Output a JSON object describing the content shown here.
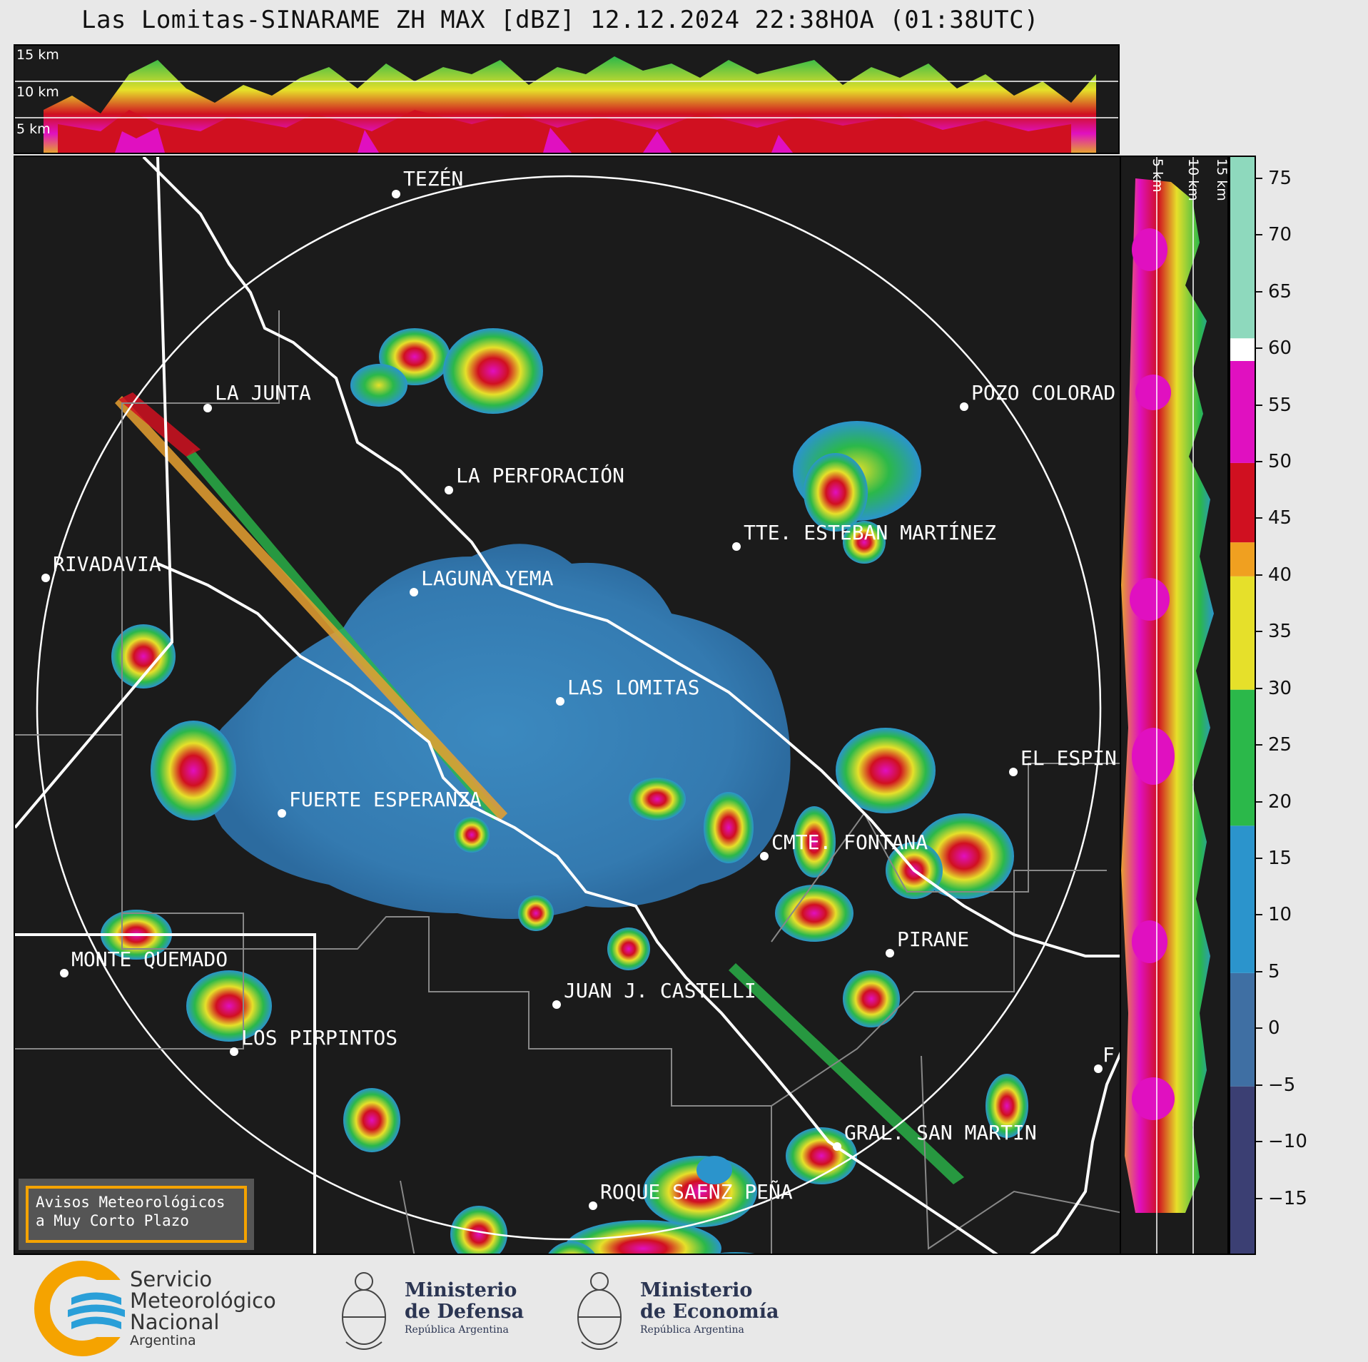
{
  "title": "Las Lomitas-SINARAME ZH MAX [dBZ] 12.12.2024 22:38HOA (01:38UTC)",
  "profile_height_labels": [
    "15 km",
    "10 km",
    "5 km"
  ],
  "colorbar": {
    "ticks": [
      "75",
      "70",
      "65",
      "60",
      "55",
      "50",
      "45",
      "40",
      "35",
      "30",
      "25",
      "20",
      "15",
      "10",
      "5",
      "0",
      "−5",
      "−10",
      "−15"
    ],
    "bands": [
      {
        "from": -20,
        "to": -5,
        "color": "#3b3f73"
      },
      {
        "from": -5,
        "to": 5,
        "color": "#3f6fa3"
      },
      {
        "from": 5,
        "to": 18,
        "color": "#2b94cc"
      },
      {
        "from": 18,
        "to": 30,
        "color": "#2bb84a"
      },
      {
        "from": 30,
        "to": 40,
        "color": "#e6e02a"
      },
      {
        "from": 40,
        "to": 43,
        "color": "#f0a020"
      },
      {
        "from": 43,
        "to": 50,
        "color": "#d01020"
      },
      {
        "from": 50,
        "to": 59,
        "color": "#e010c0"
      },
      {
        "from": 59,
        "to": 61,
        "color": "#ffffff"
      },
      {
        "from": 61,
        "to": 77,
        "color": "#8ed9bd"
      }
    ]
  },
  "cities": [
    {
      "name": "TEZÉN"
    },
    {
      "name": "LA JUNTA"
    },
    {
      "name": "POZO COLORAD"
    },
    {
      "name": "LA PERFORACIÓN"
    },
    {
      "name": "TTE. ESTEBAN MARTÍNEZ"
    },
    {
      "name": "RIVADAVIA"
    },
    {
      "name": "LAGUNA YEMA"
    },
    {
      "name": "LAS LOMITAS"
    },
    {
      "name": "EL ESPIN"
    },
    {
      "name": "FUERTE ESPERANZA"
    },
    {
      "name": "CMTE. FONTANA"
    },
    {
      "name": "PIRANE"
    },
    {
      "name": "MONTE QUEMADO"
    },
    {
      "name": "JUAN J. CASTELLI"
    },
    {
      "name": "LOS PIRPINTOS"
    },
    {
      "name": "GRAL. SAN MARTIN"
    },
    {
      "name": "ROQUE SAENZ PEÑA"
    },
    {
      "name": "F"
    }
  ],
  "alert_box": {
    "line1": "Avisos Meteorológicos",
    "line2": "a Muy Corto Plazo"
  },
  "footer": {
    "smn": {
      "line1": "Servicio",
      "line2": "Meteorológico",
      "line3": "Nacional",
      "line4": "Argentina"
    },
    "defensa": {
      "line1": "Ministerio",
      "line2": "de Defensa",
      "line3": "República Argentina"
    },
    "economia": {
      "line1": "Ministerio",
      "line2": "de Economía",
      "line3": "República Argentina"
    }
  },
  "colors": {
    "background": "#1b1b1b",
    "accent_orange": "#f5a300",
    "smn_blue": "#2a9fd8"
  }
}
